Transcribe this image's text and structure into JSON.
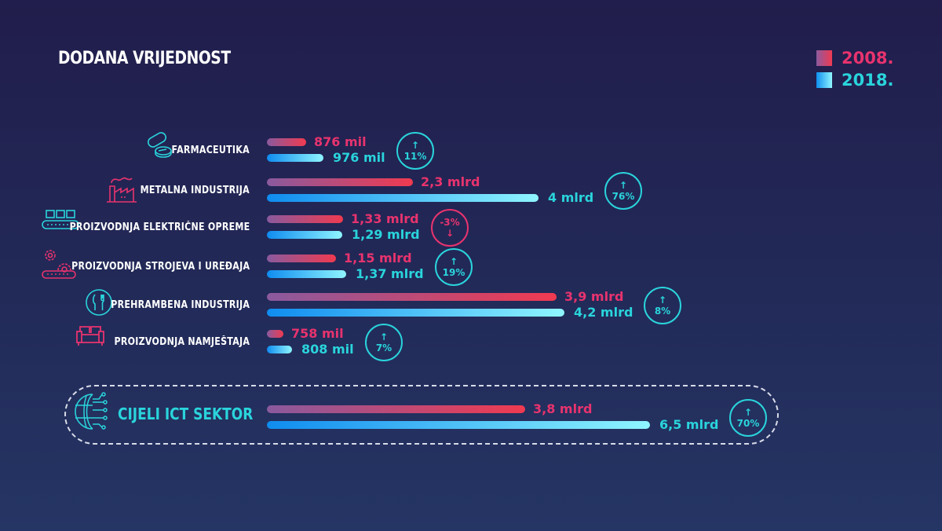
{
  "title": "DODANA VRIJEDNOST",
  "legend": [
    {
      "label": "2008.",
      "color": "#e8336e"
    },
    {
      "label": "2018.",
      "color": "#2ad4dc"
    }
  ],
  "chart_data": {
    "type": "bar",
    "title": "DODANA VRIJEDNOST",
    "series_names": [
      "2008.",
      "2018."
    ],
    "categories": [
      "FARMACEUTIKA",
      "METALNA INDUSTRIJA",
      "PROIZVODNJA ELEKTRIČNE OPREME",
      "PROIZVODNJA STROJEVA I UREĐAJA",
      "PREHRAMBENA INDUSTRIJA",
      "PROIZVODNJA NAMJEŠTAJA",
      "CIJELI ICT SEKTOR"
    ],
    "rows": [
      {
        "label": "FARMACEUTIKA",
        "icon": "pills-icon",
        "v2008": "876 mil",
        "v2018": "976 mil",
        "change": "11%",
        "dir": "up"
      },
      {
        "label": "METALNA INDUSTRIJA",
        "icon": "factory-icon",
        "v2008": "2,3 mlrd",
        "v2018": "4 mlrd",
        "change": "76%",
        "dir": "up"
      },
      {
        "label": "PROIZVODNJA ELEKTRIČNE OPREME",
        "icon": "conveyor-icon",
        "v2008": "1,33 mlrd",
        "v2018": "1,29 mlrd",
        "change": "-3%",
        "dir": "down"
      },
      {
        "label": "PROIZVODNJA STROJEVA I UREĐAJA",
        "icon": "gears-icon",
        "v2008": "1,15 mlrd",
        "v2018": "1,37 mlrd",
        "change": "19%",
        "dir": "up"
      },
      {
        "label": "PREHRAMBENA INDUSTRIJA",
        "icon": "cutlery-icon",
        "v2008": "3,9 mlrd",
        "v2018": "4,2 mlrd",
        "change": "8%",
        "dir": "up"
      },
      {
        "label": "PROIZVODNJA NAMJEŠTAJA",
        "icon": "sofa-icon",
        "v2008": "758 mil",
        "v2018": "808 mil",
        "change": "7%",
        "dir": "up"
      },
      {
        "label": "CIJELI ICT SEKTOR",
        "icon": "globe-circuit-icon",
        "v2008": "3,8 mlrd",
        "v2018": "6,5 mlrd",
        "change": "70%",
        "dir": "up"
      }
    ],
    "values_millions": {
      "2008.": [
        876,
        2300,
        1330,
        1150,
        3900,
        758,
        3800
      ],
      "2018.": [
        976,
        4000,
        1290,
        1370,
        4200,
        808,
        6500
      ]
    }
  },
  "arrows": {
    "up": "↑",
    "down": "↓"
  }
}
